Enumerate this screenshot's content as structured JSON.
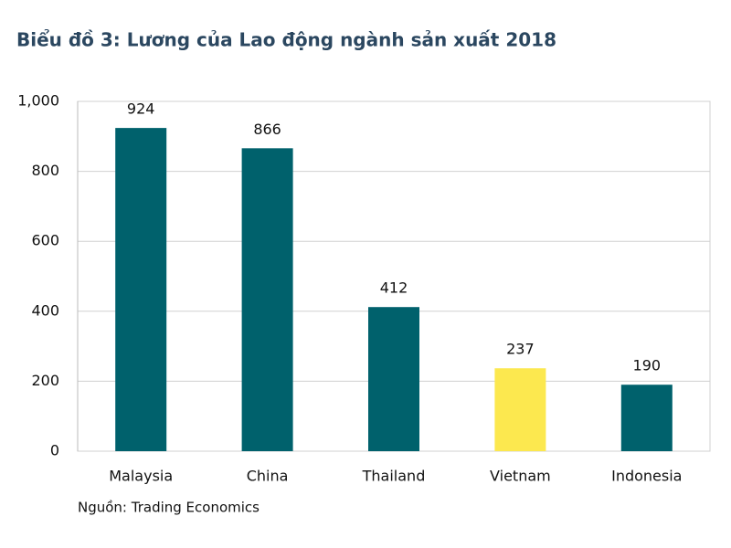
{
  "chart_data": {
    "type": "bar",
    "title": "Biểu đồ 3: Lương của Lao động ngành sản xuất 2018",
    "categories": [
      "Malaysia",
      "China",
      "Thailand",
      "Vietnam",
      "Indonesia"
    ],
    "values": [
      924,
      866,
      412,
      237,
      190
    ],
    "colors": [
      "#00616c",
      "#00616c",
      "#00616c",
      "#fce84f",
      "#00616c"
    ],
    "ylim": [
      0,
      1000
    ],
    "yticks": [
      0,
      200,
      400,
      600,
      800,
      {
        "value": 1000,
        "label": "1,000"
      }
    ],
    "grid": true,
    "source": "Nguồn: Trading Economics"
  }
}
